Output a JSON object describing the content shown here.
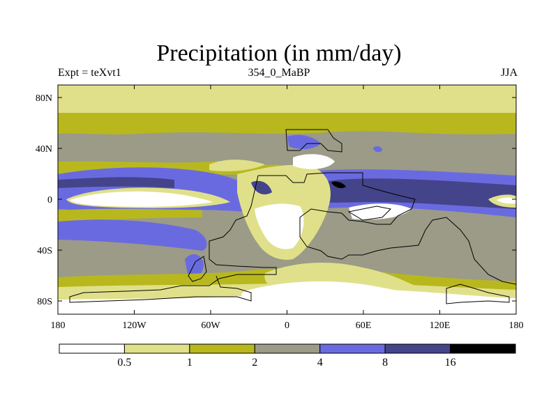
{
  "title": "Precipitation (in mm/day)",
  "subtitle_left": "Expt = teXvt1",
  "subtitle_center": "354_0_MaBP",
  "subtitle_right": "JJA",
  "axes": {
    "x_ticks": [
      "180",
      "120W",
      "60W",
      "0",
      "60E",
      "120E",
      "180"
    ],
    "y_ticks": [
      "80N",
      "40N",
      "0",
      "40S",
      "80S"
    ]
  },
  "colorbar": {
    "labels": [
      "0.5",
      "1",
      "2",
      "4",
      "8",
      "16"
    ],
    "colors": [
      "#ffffff",
      "#e0e08a",
      "#b8b81e",
      "#9b9b88",
      "#6a6ae0",
      "#44448a",
      "#000000"
    ]
  },
  "chart_data": {
    "type": "heatmap",
    "title": "Precipitation (in mm/day)",
    "variable": "Precipitation",
    "units": "mm/day",
    "experiment": "teXvt1",
    "time": "354_0_MaBP",
    "season": "JJA",
    "xlim": [
      -180,
      180
    ],
    "ylim": [
      -90,
      90
    ],
    "x_ticks": [
      -180,
      -120,
      -60,
      0,
      60,
      120,
      180
    ],
    "y_ticks": [
      80,
      40,
      0,
      -40,
      -80
    ],
    "levels": [
      0.5,
      1,
      2,
      4,
      8,
      16
    ]
  }
}
